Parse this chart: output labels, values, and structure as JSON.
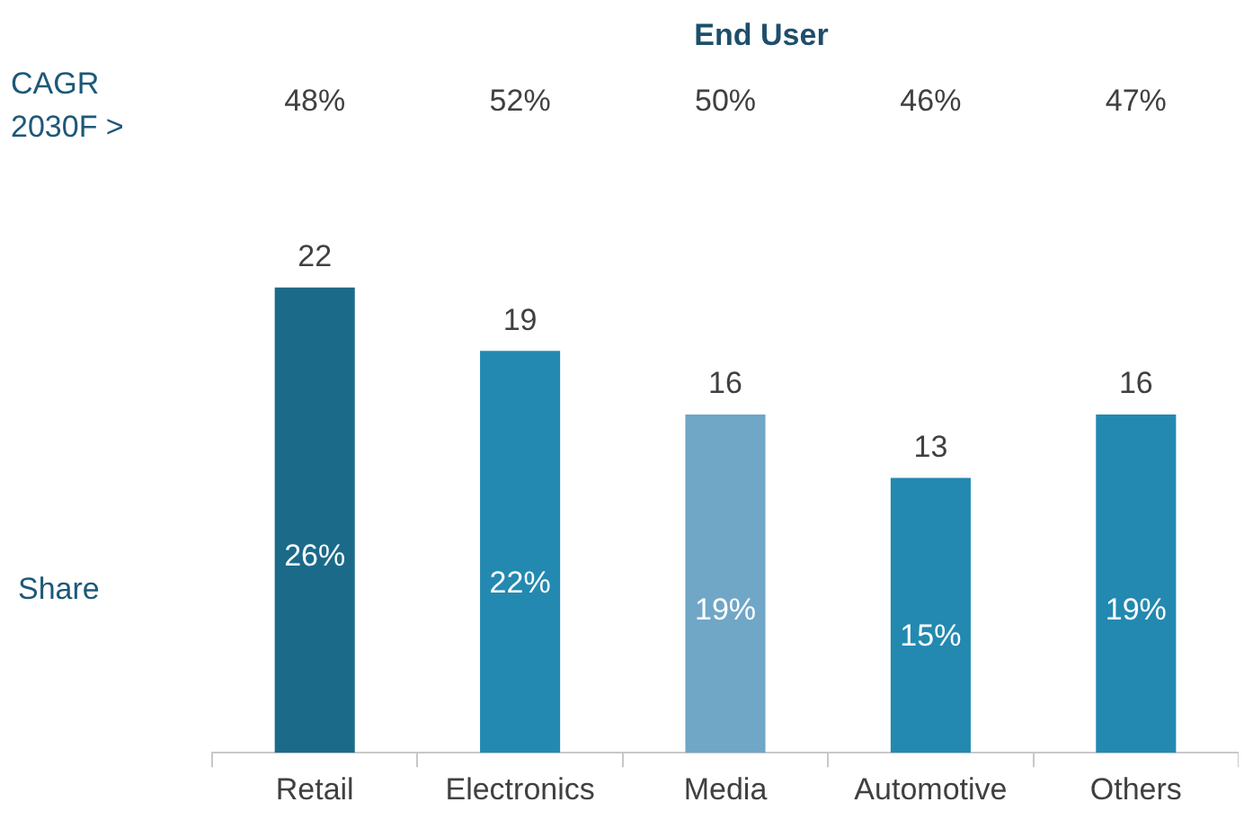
{
  "chart_data": {
    "type": "bar",
    "title": "End User",
    "categories": [
      "Retail",
      "Electronics",
      "Media",
      "Automotive",
      "Others"
    ],
    "values": [
      22,
      19,
      16,
      13,
      16
    ],
    "colors": [
      "#1b6a8a",
      "#2389b0",
      "#70a6c6",
      "#2389b0",
      "#2389b0"
    ],
    "data_labels": true,
    "grid": false,
    "legend": false,
    "annotations": [
      "CAGR 2030F >",
      "Share",
      "48%",
      "52%",
      "50%",
      "46%",
      "47%",
      "26%",
      "22%",
      "19%",
      "15%",
      "19%"
    ]
  }
}
